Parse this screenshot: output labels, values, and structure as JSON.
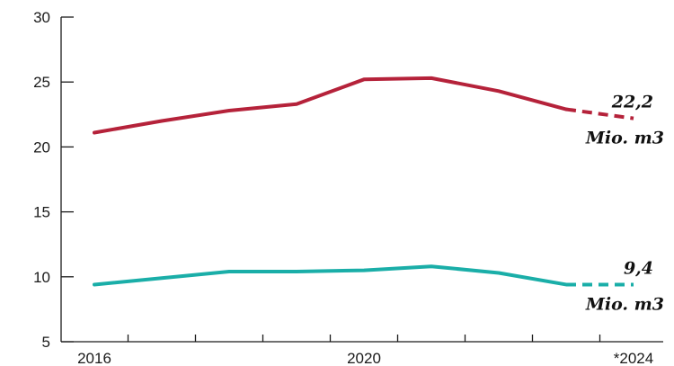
{
  "chart_data": {
    "type": "line",
    "x": [
      2016,
      2017,
      2018,
      2019,
      2020,
      2021,
      2022,
      2023,
      2024
    ],
    "x_tick_labels": [
      {
        "x": 2016,
        "label": "2016"
      },
      {
        "x": 2020,
        "label": "2020"
      },
      {
        "x": 2024,
        "label": "*2024"
      }
    ],
    "ylim": [
      5,
      30
    ],
    "y_ticks": [
      5,
      10,
      15,
      20,
      25,
      30
    ],
    "grid": false,
    "series": [
      {
        "color": "#b5223a",
        "values": [
          21.1,
          22.0,
          22.8,
          23.3,
          25.2,
          25.3,
          24.3,
          22.9,
          22.2
        ],
        "dashed_from_index": 7,
        "annotation": {
          "value": "22,2",
          "unit": "Mio. m3"
        }
      },
      {
        "color": "#1aaea8",
        "values": [
          9.4,
          9.9,
          10.4,
          10.4,
          10.5,
          10.8,
          10.3,
          9.4,
          9.4
        ],
        "dashed_from_index": 7,
        "annotation": {
          "value": "9,4",
          "unit": "Mio. m3"
        }
      }
    ]
  }
}
